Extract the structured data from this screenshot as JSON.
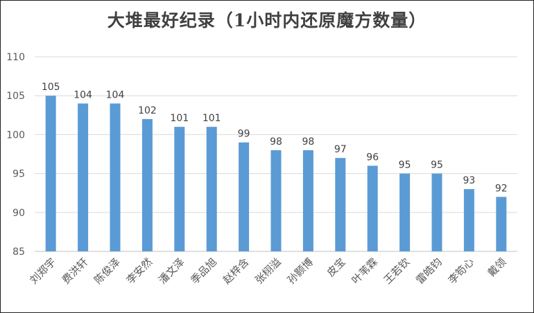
{
  "chart_data": {
    "type": "bar",
    "title": "大堆最好纪录（1小时内还原魔方数量）",
    "xlabel": "",
    "ylabel": "",
    "ylim": [
      85,
      110
    ],
    "yticks": [
      85,
      90,
      95,
      100,
      105,
      110
    ],
    "grid": true,
    "legend": "none",
    "bar_color": "#5B9BD5",
    "categories": [
      "刘郑宇",
      "费洪轩",
      "陈俊泽",
      "李安然",
      "潘文泽",
      "季品旭",
      "赵梓含",
      "张栩溢",
      "孙颢博",
      "皮宝",
      "叶苇霖",
      "王若钦",
      "雷皓钧",
      "李笱心",
      "戴领"
    ],
    "values": [
      105,
      104,
      104,
      102,
      101,
      101,
      99,
      98,
      98,
      97,
      96,
      95,
      95,
      93,
      92
    ]
  }
}
